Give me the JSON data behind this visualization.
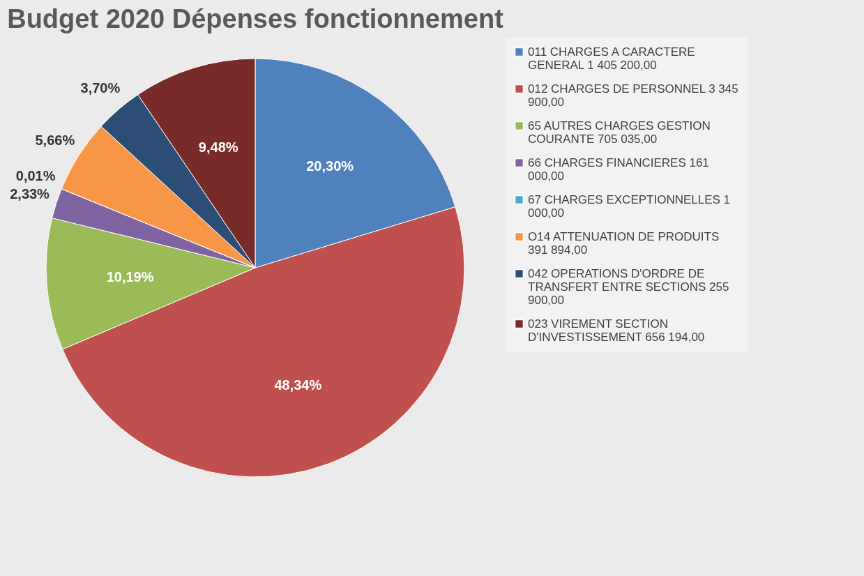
{
  "chart_data": {
    "type": "pie",
    "title": "Budget 2020 Dépenses fonctionnement",
    "categories": [
      "011 CHARGES A CARACTERE GENERAL 1 405 200,00",
      "012 CHARGES DE PERSONNEL 3 345 900,00",
      "65 AUTRES CHARGES GESTION COURANTE 705 035,00",
      "66 CHARGES FINANCIERES 161 000,00",
      "67 CHARGES EXCEPTIONNELLES 1 000,00",
      "O14 ATTENUATION DE PRODUITS 391 894,00",
      "042 OPERATIONS D'ORDRE DE TRANSFERT ENTRE SECTIONS 255 900,00",
      "023 VIREMENT SECTION D'INVESTISSEMENT 656 194,00"
    ],
    "values": [
      20.3,
      48.34,
      10.19,
      2.33,
      0.01,
      5.66,
      3.7,
      9.48
    ],
    "value_labels": [
      "20,30%",
      "48,34%",
      "10,19%",
      "2,33%",
      "0,01%",
      "5,66%",
      "3,70%",
      "9,48%"
    ],
    "colors": [
      "#4f81bd",
      "#c0504d",
      "#9bbb59",
      "#8064a2",
      "#4bacc6",
      "#f79646",
      "#2c4d75",
      "#772c2a"
    ],
    "legend": "right"
  }
}
